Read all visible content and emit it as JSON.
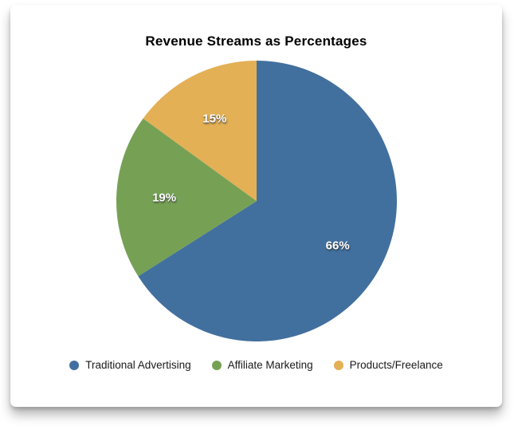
{
  "chart_data": {
    "type": "pie",
    "title": "Revenue Streams as Percentages",
    "labels": [
      "Traditional Advertising",
      "Affiliate Marketing",
      "Products/Freelance"
    ],
    "values": [
      66,
      19,
      15
    ],
    "value_labels": [
      "66%",
      "19%",
      "15%"
    ],
    "colors": [
      "#42709E",
      "#76A155",
      "#E3B055"
    ],
    "start_angle_deg": 0,
    "direction": "clockwise",
    "legend_position": "bottom",
    "slice_label_color": "#ffffff"
  }
}
